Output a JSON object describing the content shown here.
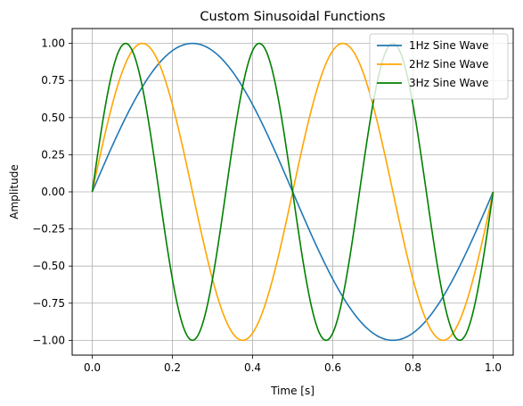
{
  "chart_data": {
    "type": "line",
    "title": "Custom Sinusoidal Functions",
    "xlabel": "Time [s]",
    "ylabel": "Amplitude",
    "xlim": [
      -0.05,
      1.05
    ],
    "ylim": [
      -1.1,
      1.1
    ],
    "x_ticks": [
      0.0,
      0.2,
      0.4,
      0.6,
      0.8,
      1.0
    ],
    "x_tick_labels": [
      "0.0",
      "0.2",
      "0.4",
      "0.6",
      "0.8",
      "1.0"
    ],
    "y_ticks": [
      -1.0,
      -0.75,
      -0.5,
      -0.25,
      0.0,
      0.25,
      0.5,
      0.75,
      1.0
    ],
    "y_tick_labels": [
      "−1.00",
      "−0.75",
      "−0.50",
      "−0.25",
      "0.00",
      "0.25",
      "0.50",
      "0.75",
      "1.00"
    ],
    "grid": true,
    "legend_position": "top-right",
    "x_range": [
      0.0,
      1.0
    ],
    "series": [
      {
        "name": "1Hz Sine Wave",
        "frequency": 1,
        "amplitude": 1,
        "function": "sin(2*pi*f*t)",
        "color": "#1f77b4"
      },
      {
        "name": "2Hz Sine Wave",
        "frequency": 2,
        "amplitude": 1,
        "function": "sin(2*pi*f*t)",
        "color": "#ffa500"
      },
      {
        "name": "3Hz Sine Wave",
        "frequency": 3,
        "amplitude": 1,
        "function": "sin(2*pi*f*t)",
        "color": "#008000"
      }
    ]
  }
}
